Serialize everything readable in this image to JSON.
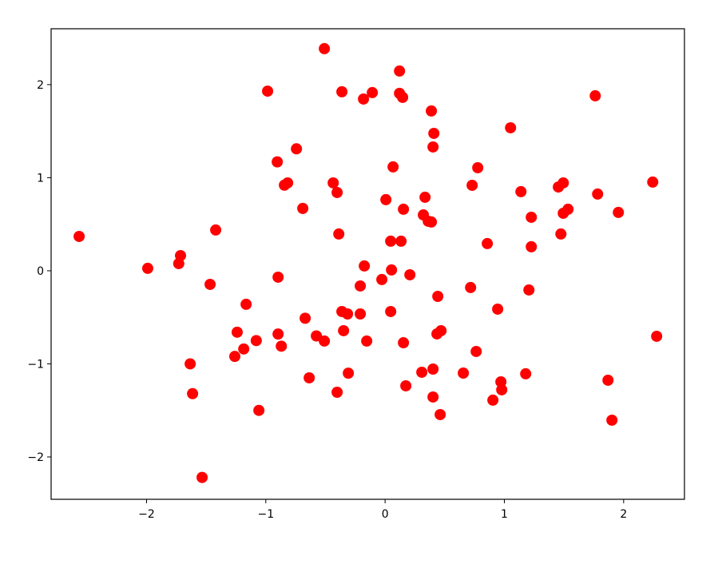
{
  "chart_data": {
    "type": "scatter",
    "title": "",
    "xlabel": "",
    "ylabel": "",
    "xlim": [
      -2.8,
      2.51
    ],
    "ylim": [
      -2.455,
      2.6
    ],
    "xticks": [
      -2,
      -1,
      0,
      1,
      2
    ],
    "yticks": [
      -2,
      -1,
      0,
      1,
      2
    ],
    "xtick_labels": [
      "−2",
      "−1",
      "0",
      "1",
      "2"
    ],
    "ytick_labels": [
      "−2",
      "−1",
      "0",
      "1",
      "2"
    ],
    "grid": false,
    "marker_color": "#ff0000",
    "points": [
      [
        -2.565,
        0.369
      ],
      [
        -1.99,
        0.026
      ],
      [
        -1.715,
        0.163
      ],
      [
        -1.73,
        0.077
      ],
      [
        -1.42,
        0.438
      ],
      [
        -1.467,
        -0.146
      ],
      [
        -1.165,
        -0.36
      ],
      [
        -1.24,
        -0.66
      ],
      [
        -1.26,
        -0.92
      ],
      [
        -1.185,
        -0.84
      ],
      [
        -1.08,
        -0.75
      ],
      [
        -1.634,
        -1.0
      ],
      [
        -1.614,
        -1.32
      ],
      [
        -1.534,
        -2.22
      ],
      [
        -1.058,
        -1.5
      ],
      [
        -0.985,
        1.93
      ],
      [
        -0.904,
        1.17
      ],
      [
        -0.743,
        1.31
      ],
      [
        -0.844,
        0.92
      ],
      [
        -0.817,
        0.944
      ],
      [
        -0.69,
        0.67
      ],
      [
        -0.897,
        -0.069
      ],
      [
        -0.897,
        -0.68
      ],
      [
        -0.87,
        -0.81
      ],
      [
        -0.67,
        -0.51
      ],
      [
        -0.636,
        -1.15
      ],
      [
        -0.576,
        -0.7
      ],
      [
        -0.509,
        -0.755
      ],
      [
        -0.509,
        2.386
      ],
      [
        -0.435,
        0.944
      ],
      [
        -0.402,
        0.841
      ],
      [
        -0.362,
        1.923
      ],
      [
        -0.388,
        0.395
      ],
      [
        -0.362,
        -0.438
      ],
      [
        -0.315,
        -0.464
      ],
      [
        -0.348,
        -0.644
      ],
      [
        -0.308,
        -1.1
      ],
      [
        -0.402,
        -1.305
      ],
      [
        -0.181,
        1.845
      ],
      [
        -0.107,
        1.914
      ],
      [
        -0.174,
        0.052
      ],
      [
        -0.208,
        -0.163
      ],
      [
        -0.208,
        -0.464
      ],
      [
        -0.154,
        -0.755
      ],
      [
        -0.027,
        -0.094
      ],
      [
        0.007,
        0.764
      ],
      [
        0.047,
        0.318
      ],
      [
        0.054,
        0.009
      ],
      [
        0.047,
        -0.438
      ],
      [
        0.067,
        1.116
      ],
      [
        0.121,
        2.146
      ],
      [
        0.121,
        1.906
      ],
      [
        0.147,
        1.863
      ],
      [
        0.134,
        0.318
      ],
      [
        0.154,
        0.661
      ],
      [
        0.208,
        -0.043
      ],
      [
        0.154,
        -0.773
      ],
      [
        0.174,
        -1.236
      ],
      [
        0.308,
        -1.09
      ],
      [
        0.321,
        0.6
      ],
      [
        0.335,
        0.79
      ],
      [
        0.362,
        0.532
      ],
      [
        0.388,
        0.524
      ],
      [
        0.388,
        1.717
      ],
      [
        0.409,
        1.476
      ],
      [
        0.402,
        1.33
      ],
      [
        0.442,
        -0.275
      ],
      [
        0.435,
        -0.678
      ],
      [
        0.469,
        -0.644
      ],
      [
        0.402,
        -1.056
      ],
      [
        0.402,
        -1.356
      ],
      [
        0.462,
        -1.545
      ],
      [
        0.717,
        -0.18
      ],
      [
        0.73,
        0.918
      ],
      [
        0.777,
        1.107
      ],
      [
        0.764,
        -0.867
      ],
      [
        0.656,
        -1.099
      ],
      [
        0.857,
        0.292
      ],
      [
        0.904,
        -1.39
      ],
      [
        0.944,
        -0.412
      ],
      [
        0.971,
        -1.193
      ],
      [
        0.978,
        -1.279
      ],
      [
        1.052,
        1.536
      ],
      [
        1.139,
        0.85
      ],
      [
        1.179,
        -1.107
      ],
      [
        1.206,
        -0.206
      ],
      [
        1.226,
        0.575
      ],
      [
        1.226,
        0.258
      ],
      [
        1.453,
        0.9
      ],
      [
        1.494,
        0.944
      ],
      [
        1.474,
        0.395
      ],
      [
        1.494,
        0.618
      ],
      [
        1.534,
        0.661
      ],
      [
        1.762,
        1.88
      ],
      [
        1.782,
        0.824
      ],
      [
        1.956,
        0.627
      ],
      [
        1.869,
        -1.176
      ],
      [
        1.902,
        -1.605
      ],
      [
        2.244,
        0.953
      ],
      [
        2.277,
        -0.704
      ]
    ]
  }
}
